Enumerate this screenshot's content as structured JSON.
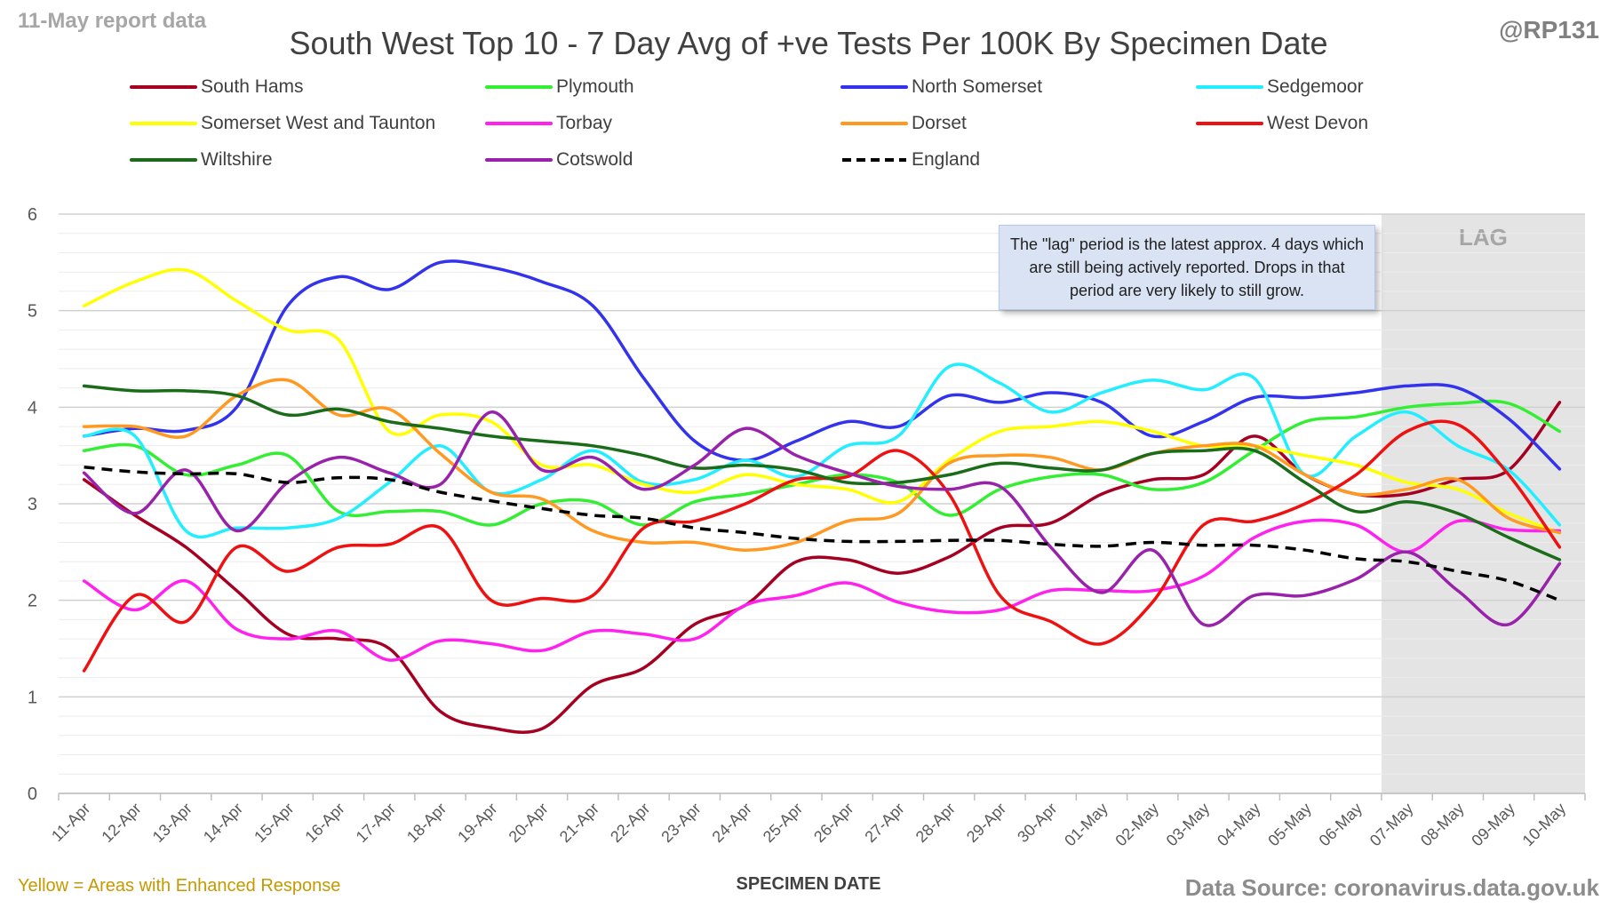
{
  "header": {
    "report_date": "11-May report data",
    "handle": "@RP131",
    "title": "South West Top 10 - 7 Day Avg of +ve Tests Per 100K By Specimen Date"
  },
  "footer": {
    "note": "Yellow = Areas with Enhanced Response",
    "source": "Data Source: coronavirus.data.gov.uk"
  },
  "annotation": "The \"lag\" period is the latest approx. 4 days which are still being actively reported. Drops in that period are very likely to still grow.",
  "lag_label": "LAG",
  "chart_data": {
    "type": "line",
    "title": "South West Top 10 - 7 Day Avg of +ve Tests Per 100K By Specimen Date",
    "xlabel": "SPECIMEN DATE",
    "ylabel": "",
    "ylim": [
      0,
      6
    ],
    "yticks": [
      0,
      1,
      2,
      3,
      4,
      5,
      6
    ],
    "grid": true,
    "legend_position": "top",
    "lag_start": "07-May",
    "categories": [
      "11-Apr",
      "12-Apr",
      "13-Apr",
      "14-Apr",
      "15-Apr",
      "16-Apr",
      "17-Apr",
      "18-Apr",
      "19-Apr",
      "20-Apr",
      "21-Apr",
      "22-Apr",
      "23-Apr",
      "24-Apr",
      "25-Apr",
      "26-Apr",
      "27-Apr",
      "28-Apr",
      "29-Apr",
      "30-Apr",
      "01-May",
      "02-May",
      "03-May",
      "04-May",
      "05-May",
      "06-May",
      "07-May",
      "08-May",
      "09-May",
      "10-May"
    ],
    "series": [
      {
        "name": "South Hams",
        "color": "#a50021",
        "dash": false,
        "values": [
          3.25,
          2.88,
          2.55,
          2.1,
          1.65,
          1.6,
          1.5,
          0.85,
          0.68,
          0.67,
          1.12,
          1.3,
          1.75,
          1.95,
          2.4,
          2.42,
          2.28,
          2.45,
          2.75,
          2.8,
          3.1,
          3.25,
          3.3,
          3.7,
          3.3,
          3.1,
          3.1,
          3.25,
          3.35,
          4.05
        ]
      },
      {
        "name": "Plymouth",
        "color": "#33ee33",
        "dash": false,
        "values": [
          3.55,
          3.6,
          3.3,
          3.4,
          3.5,
          2.92,
          2.92,
          2.92,
          2.78,
          3.0,
          3.02,
          2.78,
          3.02,
          3.1,
          3.2,
          3.3,
          3.22,
          2.88,
          3.15,
          3.28,
          3.3,
          3.15,
          3.22,
          3.55,
          3.85,
          3.9,
          4.0,
          4.04,
          4.04,
          3.75
        ]
      },
      {
        "name": "North Somerset",
        "color": "#3333ee",
        "dash": false,
        "values": [
          3.7,
          3.78,
          3.76,
          4.0,
          5.05,
          5.35,
          5.22,
          5.5,
          5.45,
          5.3,
          5.05,
          4.3,
          3.65,
          3.45,
          3.65,
          3.85,
          3.8,
          4.12,
          4.05,
          4.15,
          4.05,
          3.7,
          3.85,
          4.1,
          4.1,
          4.15,
          4.22,
          4.2,
          3.88,
          3.36
        ]
      },
      {
        "name": "Sedgemoor",
        "color": "#22eeff",
        "dash": false,
        "values": [
          3.7,
          3.7,
          2.72,
          2.75,
          2.75,
          2.85,
          3.22,
          3.6,
          3.12,
          3.25,
          3.55,
          3.22,
          3.25,
          3.45,
          3.28,
          3.6,
          3.7,
          4.42,
          4.25,
          3.95,
          4.15,
          4.28,
          4.18,
          4.3,
          3.3,
          3.7,
          3.95,
          3.6,
          3.35,
          2.78
        ]
      },
      {
        "name": "Somerset West and Taunton",
        "color": "#ffff00",
        "dash": false,
        "values": [
          5.05,
          5.3,
          5.42,
          5.1,
          4.8,
          4.7,
          3.75,
          3.92,
          3.85,
          3.4,
          3.4,
          3.2,
          3.12,
          3.3,
          3.2,
          3.15,
          3.02,
          3.45,
          3.75,
          3.8,
          3.85,
          3.75,
          3.6,
          3.6,
          3.5,
          3.4,
          3.22,
          3.15,
          2.9,
          2.7
        ]
      },
      {
        "name": "Torbay",
        "color": "#ff22ee",
        "dash": false,
        "values": [
          2.2,
          1.9,
          2.2,
          1.7,
          1.6,
          1.68,
          1.38,
          1.58,
          1.55,
          1.48,
          1.68,
          1.65,
          1.6,
          1.95,
          2.05,
          2.18,
          1.98,
          1.88,
          1.9,
          2.1,
          2.1,
          2.1,
          2.25,
          2.65,
          2.82,
          2.78,
          2.5,
          2.82,
          2.73,
          2.72
        ]
      },
      {
        "name": "Dorset",
        "color": "#ff9922",
        "dash": false,
        "values": [
          3.8,
          3.8,
          3.7,
          4.12,
          4.28,
          3.92,
          3.98,
          3.52,
          3.12,
          3.05,
          2.72,
          2.6,
          2.6,
          2.52,
          2.6,
          2.82,
          2.9,
          3.42,
          3.5,
          3.48,
          3.35,
          3.52,
          3.6,
          3.6,
          3.3,
          3.1,
          3.15,
          3.25,
          2.85,
          2.7
        ]
      },
      {
        "name": "West Devon",
        "color": "#ee1111",
        "dash": false,
        "values": [
          1.27,
          2.05,
          1.78,
          2.55,
          2.3,
          2.55,
          2.58,
          2.75,
          2.0,
          2.02,
          2.05,
          2.75,
          2.82,
          3.0,
          3.25,
          3.28,
          3.55,
          3.1,
          2.05,
          1.78,
          1.55,
          1.98,
          2.78,
          2.82,
          3.0,
          3.3,
          3.75,
          3.82,
          3.3,
          2.55
        ]
      },
      {
        "name": "Wiltshire",
        "color": "#1a6b1a",
        "dash": false,
        "values": [
          4.22,
          4.17,
          4.17,
          4.12,
          3.92,
          3.98,
          3.85,
          3.78,
          3.7,
          3.65,
          3.6,
          3.5,
          3.37,
          3.4,
          3.35,
          3.22,
          3.22,
          3.3,
          3.42,
          3.37,
          3.35,
          3.52,
          3.55,
          3.55,
          3.22,
          2.92,
          3.02,
          2.9,
          2.65,
          2.42
        ]
      },
      {
        "name": "Cotswold",
        "color": "#9922aa",
        "dash": false,
        "values": [
          3.32,
          2.9,
          3.35,
          2.72,
          3.22,
          3.48,
          3.32,
          3.2,
          3.95,
          3.35,
          3.48,
          3.15,
          3.4,
          3.78,
          3.5,
          3.32,
          3.18,
          3.15,
          3.18,
          2.55,
          2.08,
          2.52,
          1.75,
          2.05,
          2.05,
          2.22,
          2.5,
          2.1,
          1.75,
          2.38
        ]
      },
      {
        "name": "England",
        "color": "#000000",
        "dash": true,
        "values": [
          3.38,
          3.33,
          3.31,
          3.31,
          3.22,
          3.27,
          3.25,
          3.12,
          3.03,
          2.95,
          2.88,
          2.85,
          2.75,
          2.7,
          2.64,
          2.61,
          2.61,
          2.62,
          2.62,
          2.58,
          2.56,
          2.6,
          2.57,
          2.57,
          2.52,
          2.43,
          2.4,
          2.3,
          2.2,
          2.0
        ]
      }
    ]
  }
}
